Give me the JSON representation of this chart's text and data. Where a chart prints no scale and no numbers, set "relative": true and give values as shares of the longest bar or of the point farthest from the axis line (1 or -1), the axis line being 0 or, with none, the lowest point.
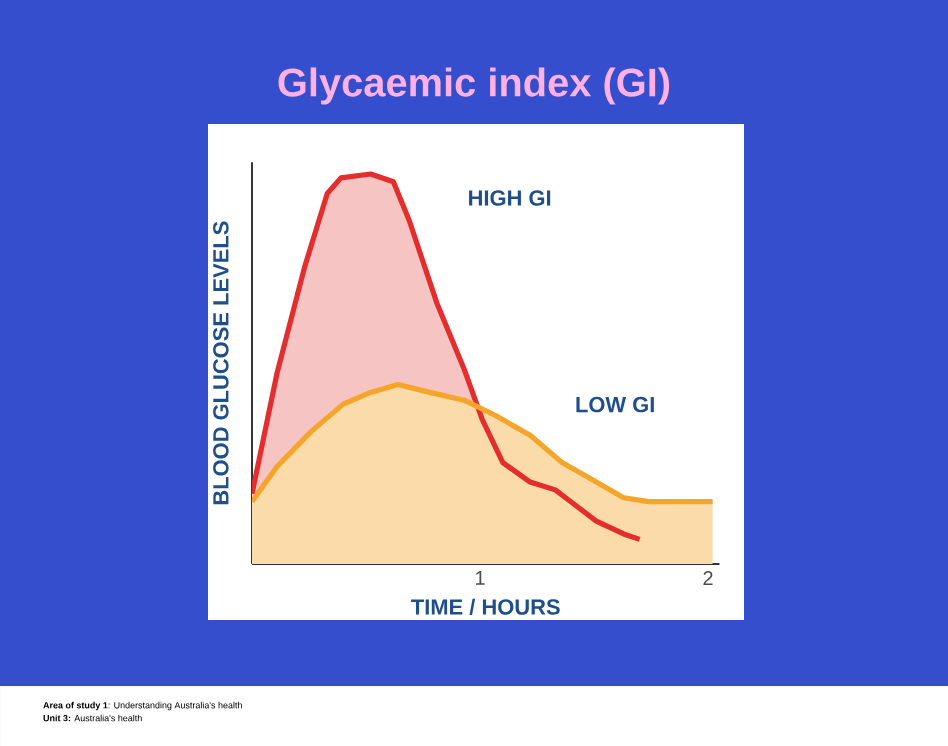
{
  "chart_data": {
    "type": "area",
    "title": "Glycaemic index (GI)",
    "xlabel": "TIME / HOURS",
    "ylabel": "BLOOD GLUCOSE LEVELS",
    "relative": true,
    "xlim": [
      0,
      2.05
    ],
    "xticks": [
      1,
      2
    ],
    "grid": false,
    "legend": false,
    "marker": "none",
    "line_style": "solid",
    "series": [
      {
        "name": "HIGH GI",
        "color": "#e42d2d",
        "x": [
          0,
          0.11,
          0.23,
          0.33,
          0.39,
          0.52,
          0.62,
          0.69,
          0.81,
          0.93,
          1.01,
          1.1,
          1.22,
          1.33,
          1.42,
          1.51,
          1.63,
          1.7
        ],
        "values": [
          0.18,
          0.49,
          0.76,
          0.95,
          0.99,
          1.0,
          0.98,
          0.88,
          0.67,
          0.5,
          0.37,
          0.26,
          0.21,
          0.19,
          0.15,
          0.11,
          0.077,
          0.063
        ]
      },
      {
        "name": "LOW GI",
        "color": "#f4a52a",
        "x": [
          0,
          0.11,
          0.26,
          0.4,
          0.52,
          0.64,
          0.78,
          0.93,
          1.07,
          1.22,
          1.36,
          1.51,
          1.63,
          1.74,
          1.86,
          2.02
        ],
        "values": [
          0.16,
          0.25,
          0.34,
          0.41,
          0.44,
          0.46,
          0.44,
          0.42,
          0.38,
          0.33,
          0.26,
          0.21,
          0.17,
          0.16,
          0.16,
          0.16
        ]
      }
    ],
    "annotations": [
      "**Area of study 1**: Understanding Australia's health",
      "**Unit 3:** Australia's health"
    ]
  }
}
